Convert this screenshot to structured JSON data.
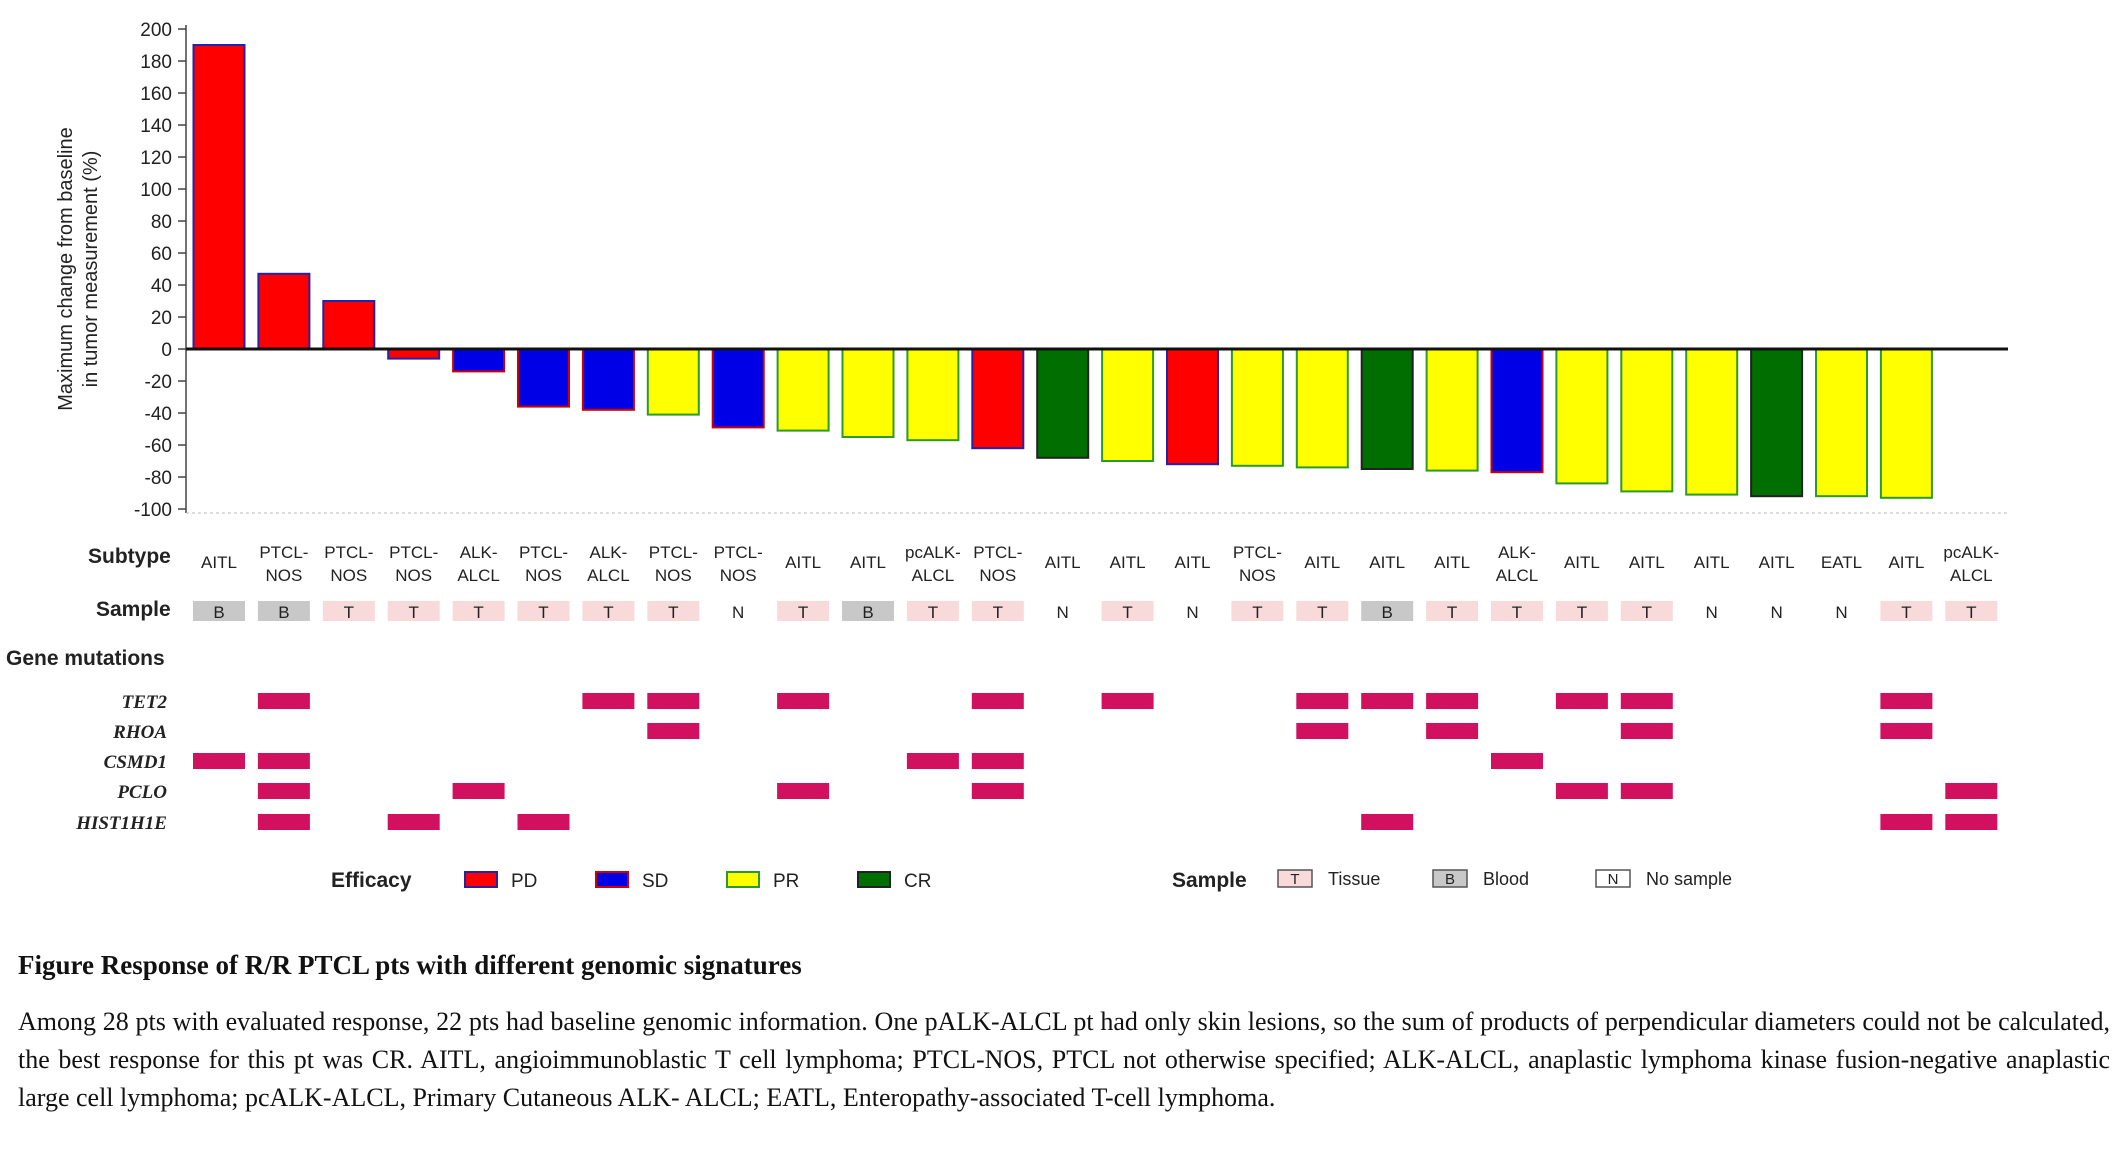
{
  "chart_data": {
    "type": "bar",
    "ylabel": "Maximum change from baseline in tumor measurement (%)",
    "ylim": [
      -100,
      200
    ],
    "yticks": [
      200,
      180,
      160,
      140,
      120,
      100,
      80,
      60,
      40,
      20,
      0,
      -20,
      -40,
      -60,
      -80,
      -100
    ],
    "values": [
      190,
      47,
      30,
      -6,
      -14,
      -36,
      -38,
      -41,
      -49,
      -51,
      -55,
      -57,
      -62,
      -68,
      -70,
      -72,
      -73,
      -74,
      -75,
      -76,
      -77,
      -84,
      -89,
      -91,
      -92,
      -92,
      -93
    ],
    "efficacy": [
      "PD",
      "PD",
      "PD",
      "PD",
      "SD",
      "SD",
      "SD",
      "PR",
      "SD",
      "PR",
      "PR",
      "PR",
      "PD",
      "CR",
      "PR",
      "PD",
      "PR",
      "PR",
      "CR",
      "PR",
      "SD",
      "PR",
      "PR",
      "PR",
      "CR",
      "PR",
      "PR"
    ],
    "subtypes": [
      "AITL",
      "PTCL-NOS",
      "PTCL-NOS",
      "PTCL-NOS",
      "ALK-ALCL",
      "PTCL-NOS",
      "ALK-ALCL",
      "PTCL-NOS",
      "PTCL-NOS",
      "AITL",
      "AITL",
      "pcALK-ALCL",
      "PTCL-NOS",
      "AITL",
      "AITL",
      "AITL",
      "PTCL-NOS",
      "AITL",
      "AITL",
      "AITL",
      "ALK-ALCL",
      "AITL",
      "AITL",
      "AITL",
      "AITL",
      "EATL",
      "AITL",
      "pcALK-ALCL"
    ],
    "samples": [
      "B",
      "B",
      "T",
      "T",
      "T",
      "T",
      "T",
      "T",
      "N",
      "T",
      "B",
      "T",
      "T",
      "N",
      "T",
      "N",
      "T",
      "T",
      "B",
      "T",
      "T",
      "T",
      "T",
      "N",
      "N",
      "N",
      "T",
      "T"
    ],
    "row_labels": {
      "subtype": "Subtype",
      "sample": "Sample",
      "gene_mutations": "Gene mutations"
    },
    "genes": [
      {
        "name": "TET2",
        "columns": [
          1,
          6,
          7,
          9,
          12,
          14,
          17,
          18,
          19,
          21,
          22,
          26
        ]
      },
      {
        "name": "RHOA",
        "columns": [
          7,
          17,
          19,
          22,
          26
        ]
      },
      {
        "name": "CSMD1",
        "columns": [
          0,
          1,
          11,
          12,
          20
        ]
      },
      {
        "name": "PCLO",
        "columns": [
          1,
          4,
          9,
          12,
          21,
          22,
          27
        ]
      },
      {
        "name": "HIST1H1E",
        "columns": [
          1,
          3,
          5,
          18,
          26,
          27
        ]
      }
    ],
    "efficacy_legend": {
      "title": "Efficacy",
      "items": [
        {
          "label": "PD",
          "fill": "#ff0000",
          "border": "#2222aa"
        },
        {
          "label": "SD",
          "fill": "#0000e6",
          "border": "#cc0000"
        },
        {
          "label": "PR",
          "fill": "#ffff00",
          "border": "#2a9a2a"
        },
        {
          "label": "CR",
          "fill": "#006e00",
          "border": "#222222"
        }
      ]
    },
    "sample_legend": {
      "title": "Sample",
      "items": [
        {
          "code": "T",
          "label": "Tissue",
          "fill": "#f9dada"
        },
        {
          "code": "B",
          "label": "Blood",
          "fill": "#c8c8c8"
        },
        {
          "code": "N",
          "label": "No sample",
          "fill": "#ffffff"
        }
      ]
    },
    "colors": {
      "PD": "#ff0000",
      "SD": "#0000e6",
      "PR": "#ffff00",
      "CR": "#006e00",
      "PD_border": "#2222aa",
      "SD_border": "#cc0000",
      "PR_border": "#2a9a2a",
      "CR_border": "#222222",
      "mutation": "#d1115f",
      "sample_T": "#f9dada",
      "sample_B": "#c8c8c8"
    }
  },
  "caption": {
    "title": "Figure Response of R/R PTCL pts with different genomic signatures",
    "body": "Among 28 pts with evaluated response, 22 pts had baseline genomic information. One pALK-ALCL pt had only skin lesions, so the sum of products of perpendicular diameters could not be calculated, the best response for this pt was CR. AITL, angioimmunoblastic  T cell lymphoma; PTCL-NOS, PTCL not otherwise specified; ALK-ALCL, anaplastic lymphoma kinase fusion-negative anaplastic large cell lymphoma; pcALK-ALCL, Primary Cutaneous ALK- ALCL; EATL, Enteropathy-associated T-cell lymphoma."
  }
}
